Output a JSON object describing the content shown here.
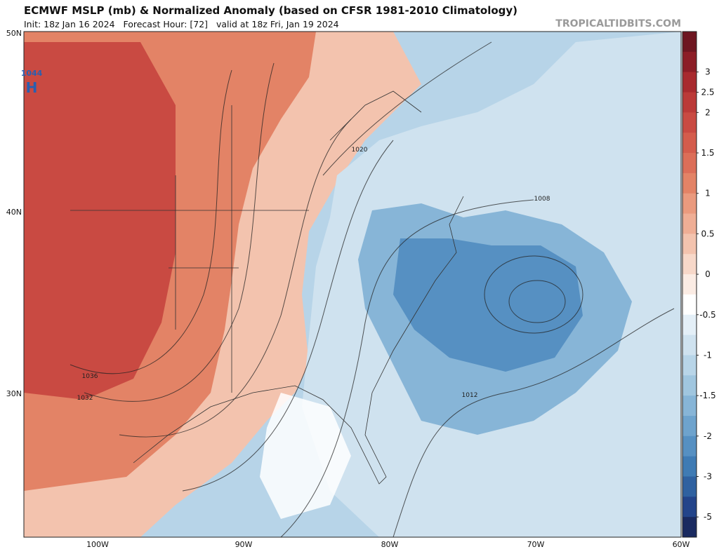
{
  "header": {
    "title": "ECMWF MSLP (mb) & Normalized Anomaly (based on CFSR 1981-2010 Climatology)",
    "subtitle": "Init: 18z Jan 16 2024   Forecast Hour: [72]   valid at 18z Fri, Jan 19 2024",
    "credit": "TROPICALTIDBITS.COM"
  },
  "map": {
    "lat_labels": [
      "50N",
      "40N",
      "30N"
    ],
    "lon_labels": [
      "100W",
      "90W",
      "80W",
      "70W",
      "60W"
    ],
    "pressure_labels": [
      "1044",
      "1036",
      "1032",
      "1020",
      "1008",
      "1012"
    ],
    "high_marker": "H"
  },
  "colorbar": {
    "colors": [
      "#6e1620",
      "#8c1d26",
      "#a82a2e",
      "#bb3a38",
      "#c94a42",
      "#d45c4c",
      "#dc6e58",
      "#e38366",
      "#ea9a7e",
      "#efae95",
      "#f3c3ae",
      "#f7d8c9",
      "#fbece4",
      "#ffffff",
      "#e4eff7",
      "#cfe2ef",
      "#b8d5e8",
      "#a0c6df",
      "#87b5d7",
      "#6ea3cd",
      "#5690c2",
      "#3f7bb4",
      "#2f61a0",
      "#23448a",
      "#1a2a60"
    ],
    "tick_labels": [
      "3",
      "2.5",
      "2",
      "1.5",
      "1",
      "0.5",
      "0",
      "-0.5",
      "-1",
      "-1.5",
      "-2",
      "-3",
      "-5"
    ]
  }
}
